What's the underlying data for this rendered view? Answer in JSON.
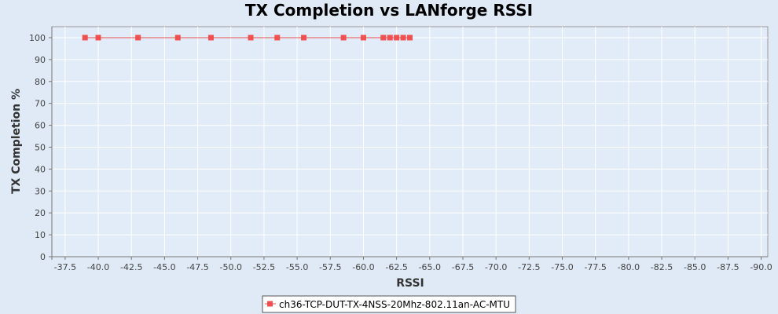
{
  "chart_data": {
    "type": "line",
    "title": "TX Completion vs LANforge RSSI",
    "xlabel": "RSSI",
    "ylabel": "TX Completion %",
    "xlim": [
      -36.5,
      -90.5
    ],
    "ylim": [
      0,
      105
    ],
    "x_ticks": [
      "-37.5",
      "-40.0",
      "-42.5",
      "-45.0",
      "-47.5",
      "-50.0",
      "-52.5",
      "-55.0",
      "-57.5",
      "-60.0",
      "-62.5",
      "-65.0",
      "-67.5",
      "-70.0",
      "-72.5",
      "-75.0",
      "-77.5",
      "-80.0",
      "-82.5",
      "-85.0",
      "-87.5",
      "-90.0"
    ],
    "y_ticks": [
      "0",
      "10",
      "20",
      "30",
      "40",
      "50",
      "60",
      "70",
      "80",
      "90",
      "100"
    ],
    "grid": true,
    "legend_position": "bottom-center",
    "series": [
      {
        "name": "ch36-TCP-DUT-TX-4NSS-20Mhz-802.11an-AC-MTU",
        "color": "#f05050",
        "x": [
          -39,
          -40,
          -43,
          -46,
          -48.5,
          -51.5,
          -53.5,
          -55.5,
          -58.5,
          -60,
          -61.5,
          -62,
          -62.5,
          -63,
          -63.5
        ],
        "y": [
          100,
          100,
          100,
          100,
          100,
          100,
          100,
          100,
          100,
          100,
          100,
          100,
          100,
          100,
          100
        ]
      }
    ]
  }
}
